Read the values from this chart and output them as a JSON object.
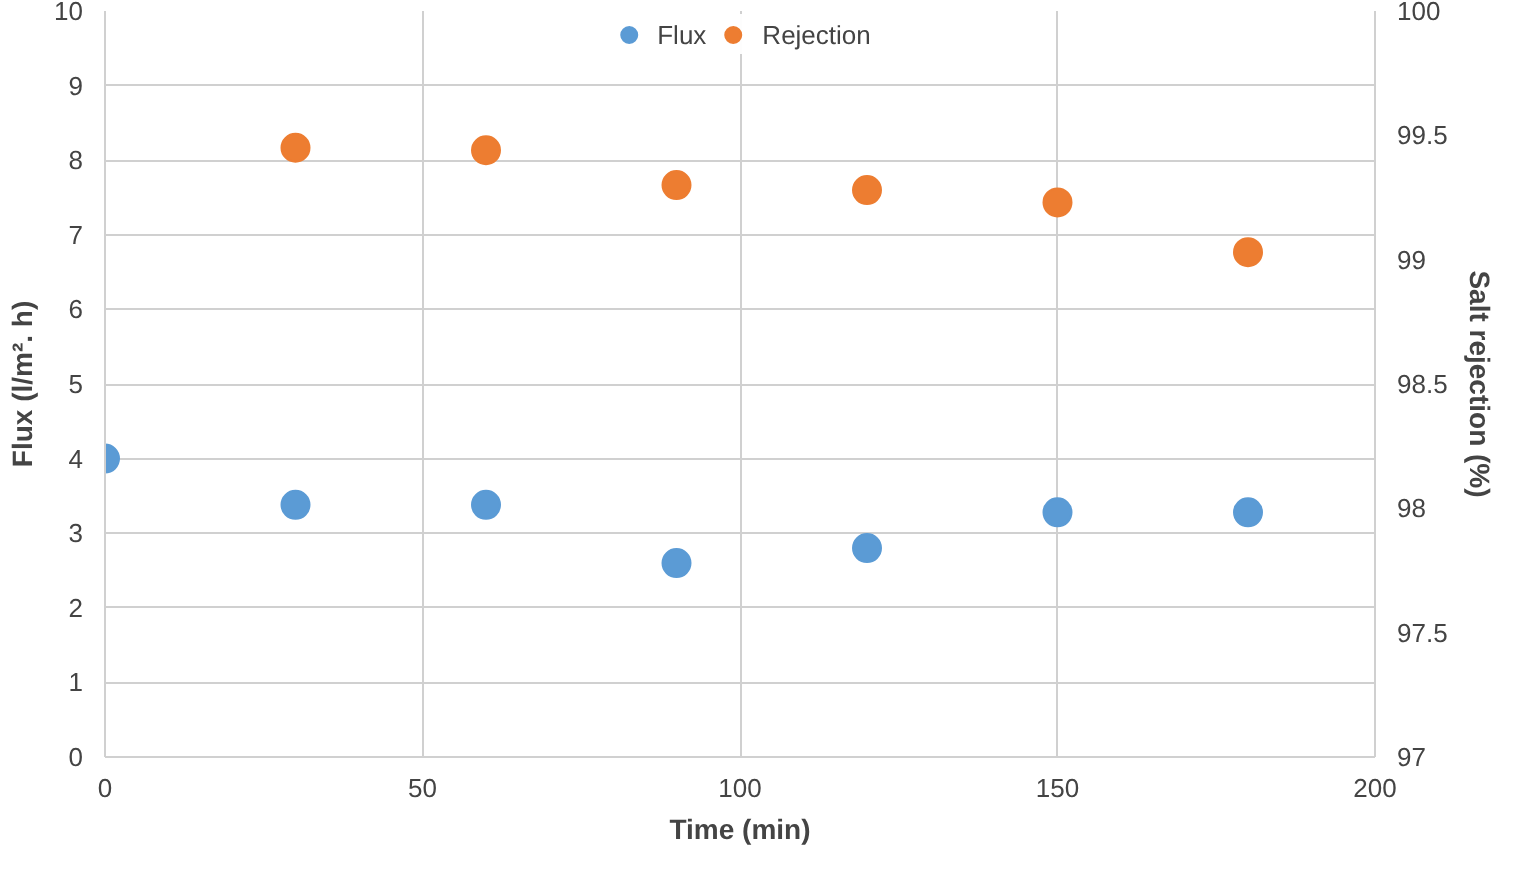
{
  "chart_data": {
    "type": "scatter",
    "xlabel": "Time (min)",
    "ylabel": "Flux (l/m². h)",
    "y2label": "Salt rejection (%)",
    "series": [
      {
        "name": "Flux",
        "color": "#5b9bd5",
        "x": [
          0,
          30,
          60,
          90,
          120,
          150,
          180
        ],
        "values": [
          4.0,
          3.38,
          3.38,
          2.6,
          2.8,
          3.28,
          3.28
        ]
      },
      {
        "name": "Rejection",
        "color": "#ed7d31",
        "axis": "y2",
        "x": [
          30,
          60,
          90,
          120,
          150,
          180
        ],
        "values": [
          99.45,
          99.44,
          99.3,
          99.28,
          99.23,
          99.03
        ]
      }
    ],
    "xlim": [
      0,
      200
    ],
    "xticks": [
      0,
      50,
      100,
      150,
      200
    ],
    "ylim": [
      0,
      10
    ],
    "yticks": [
      0,
      1,
      2,
      3,
      4,
      5,
      6,
      7,
      8,
      9,
      10
    ],
    "y2lim": [
      97,
      100
    ],
    "y2ticks": [
      97,
      97.5,
      98,
      98.5,
      99,
      99.5,
      100
    ],
    "grid": true,
    "legend": "top",
    "marker": "circle"
  }
}
